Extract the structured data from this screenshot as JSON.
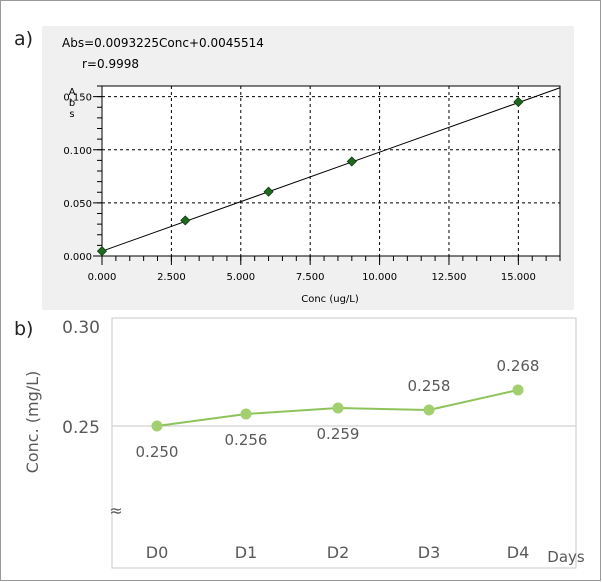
{
  "panel_labels": {
    "a": "a)",
    "b": "b)"
  },
  "chart_data": [
    {
      "type": "scatter",
      "panel": "a",
      "equation": "Abs=0.0093225Conc+0.0045514",
      "r_text": "r=0.9998",
      "xlabel": "Conc (ug/L)",
      "ylabel": "Abs",
      "xlim": [
        0,
        16.5
      ],
      "ylim": [
        0,
        0.16
      ],
      "x_ticks": [
        "0.000",
        "2.500",
        "5.000",
        "7.500",
        "10.000",
        "12.500",
        "15.000"
      ],
      "y_ticks": [
        "0.000",
        "0.050",
        "0.100",
        "0.150"
      ],
      "fit": {
        "slope": 0.0093225,
        "intercept": 0.0045514
      },
      "points": [
        {
          "x": 0,
          "y": 0.0046
        },
        {
          "x": 3,
          "y": 0.0335
        },
        {
          "x": 6,
          "y": 0.0605
        },
        {
          "x": 9,
          "y": 0.089
        },
        {
          "x": 15,
          "y": 0.145
        }
      ],
      "grid": true,
      "colors": {
        "marker": "#1f6a1f",
        "fit_line": "#000000",
        "background": "#f0f0f0"
      }
    },
    {
      "type": "line",
      "panel": "b",
      "ylabel": "Conc. (mg/L)",
      "xlabel": "Days",
      "categories": [
        "D0",
        "D1",
        "D2",
        "D3",
        "D4"
      ],
      "values": [
        0.25,
        0.256,
        0.259,
        0.258,
        0.268
      ],
      "data_labels": [
        "0.250",
        "0.256",
        "0.259",
        "0.258",
        "0.268"
      ],
      "y_ticks": [
        "0.25",
        "0.30"
      ],
      "axis_break_symbol": "≈",
      "ylim": [
        0.25,
        0.3
      ],
      "colors": {
        "line": "#8dc35a",
        "marker": "#a2d06f",
        "gridline": "#d0d0d0"
      }
    }
  ]
}
